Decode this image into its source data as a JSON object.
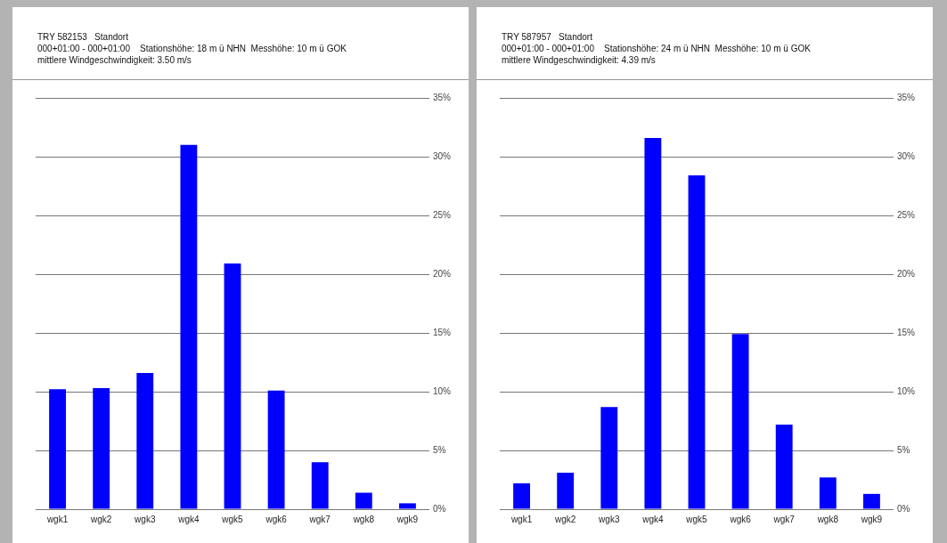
{
  "chart_data": [
    {
      "type": "bar",
      "title": "TRY 582153   Standort",
      "subtitle": "000+01:00 - 000+01:00    Stationshöhe: 18 m ü NHN  Messhöhe: 10 m ü GOK",
      "annotations": [
        "mittlere Windgeschwindigkeit: 3.50 m/s"
      ],
      "categories": [
        "wgk1",
        "wgk2",
        "wgk3",
        "wgk4",
        "wgk5",
        "wgk6",
        "wgk7",
        "wgk8",
        "wgk9"
      ],
      "values": [
        10.2,
        10.3,
        11.6,
        31.0,
        20.9,
        10.1,
        4.0,
        1.4,
        0.5
      ],
      "color": "#0000ff",
      "ylim": [
        0,
        35
      ],
      "yticks": [
        {
          "value": 0,
          "label": "0%"
        },
        {
          "value": 5,
          "label": "5%"
        },
        {
          "value": 10,
          "label": "10%"
        },
        {
          "value": 15,
          "label": "15%"
        },
        {
          "value": 20,
          "label": "20%"
        },
        {
          "value": 25,
          "label": "25%"
        },
        {
          "value": 30,
          "label": "30%"
        },
        {
          "value": 35,
          "label": "35%"
        }
      ],
      "grid": "y"
    },
    {
      "type": "bar",
      "title": "TRY 587957   Standort",
      "subtitle": "000+01:00 - 000+01:00    Stationshöhe: 24 m ü NHN  Messhöhe: 10 m ü GOK",
      "annotations": [
        "mittlere Windgeschwindigkeit: 4.39 m/s"
      ],
      "categories": [
        "wgk1",
        "wgk2",
        "wgk3",
        "wgk4",
        "wgk5",
        "wgk6",
        "wgk7",
        "wgk8",
        "wgk9"
      ],
      "values": [
        2.2,
        3.1,
        8.7,
        31.6,
        28.4,
        14.9,
        7.2,
        2.7,
        1.3
      ],
      "color": "#0000ff",
      "ylim": [
        0,
        35
      ],
      "yticks": [
        {
          "value": 0,
          "label": "0%"
        },
        {
          "value": 5,
          "label": "5%"
        },
        {
          "value": 10,
          "label": "10%"
        },
        {
          "value": 15,
          "label": "15%"
        },
        {
          "value": 20,
          "label": "20%"
        },
        {
          "value": 25,
          "label": "25%"
        },
        {
          "value": 30,
          "label": "30%"
        },
        {
          "value": 35,
          "label": "35%"
        }
      ],
      "grid": "y"
    }
  ]
}
